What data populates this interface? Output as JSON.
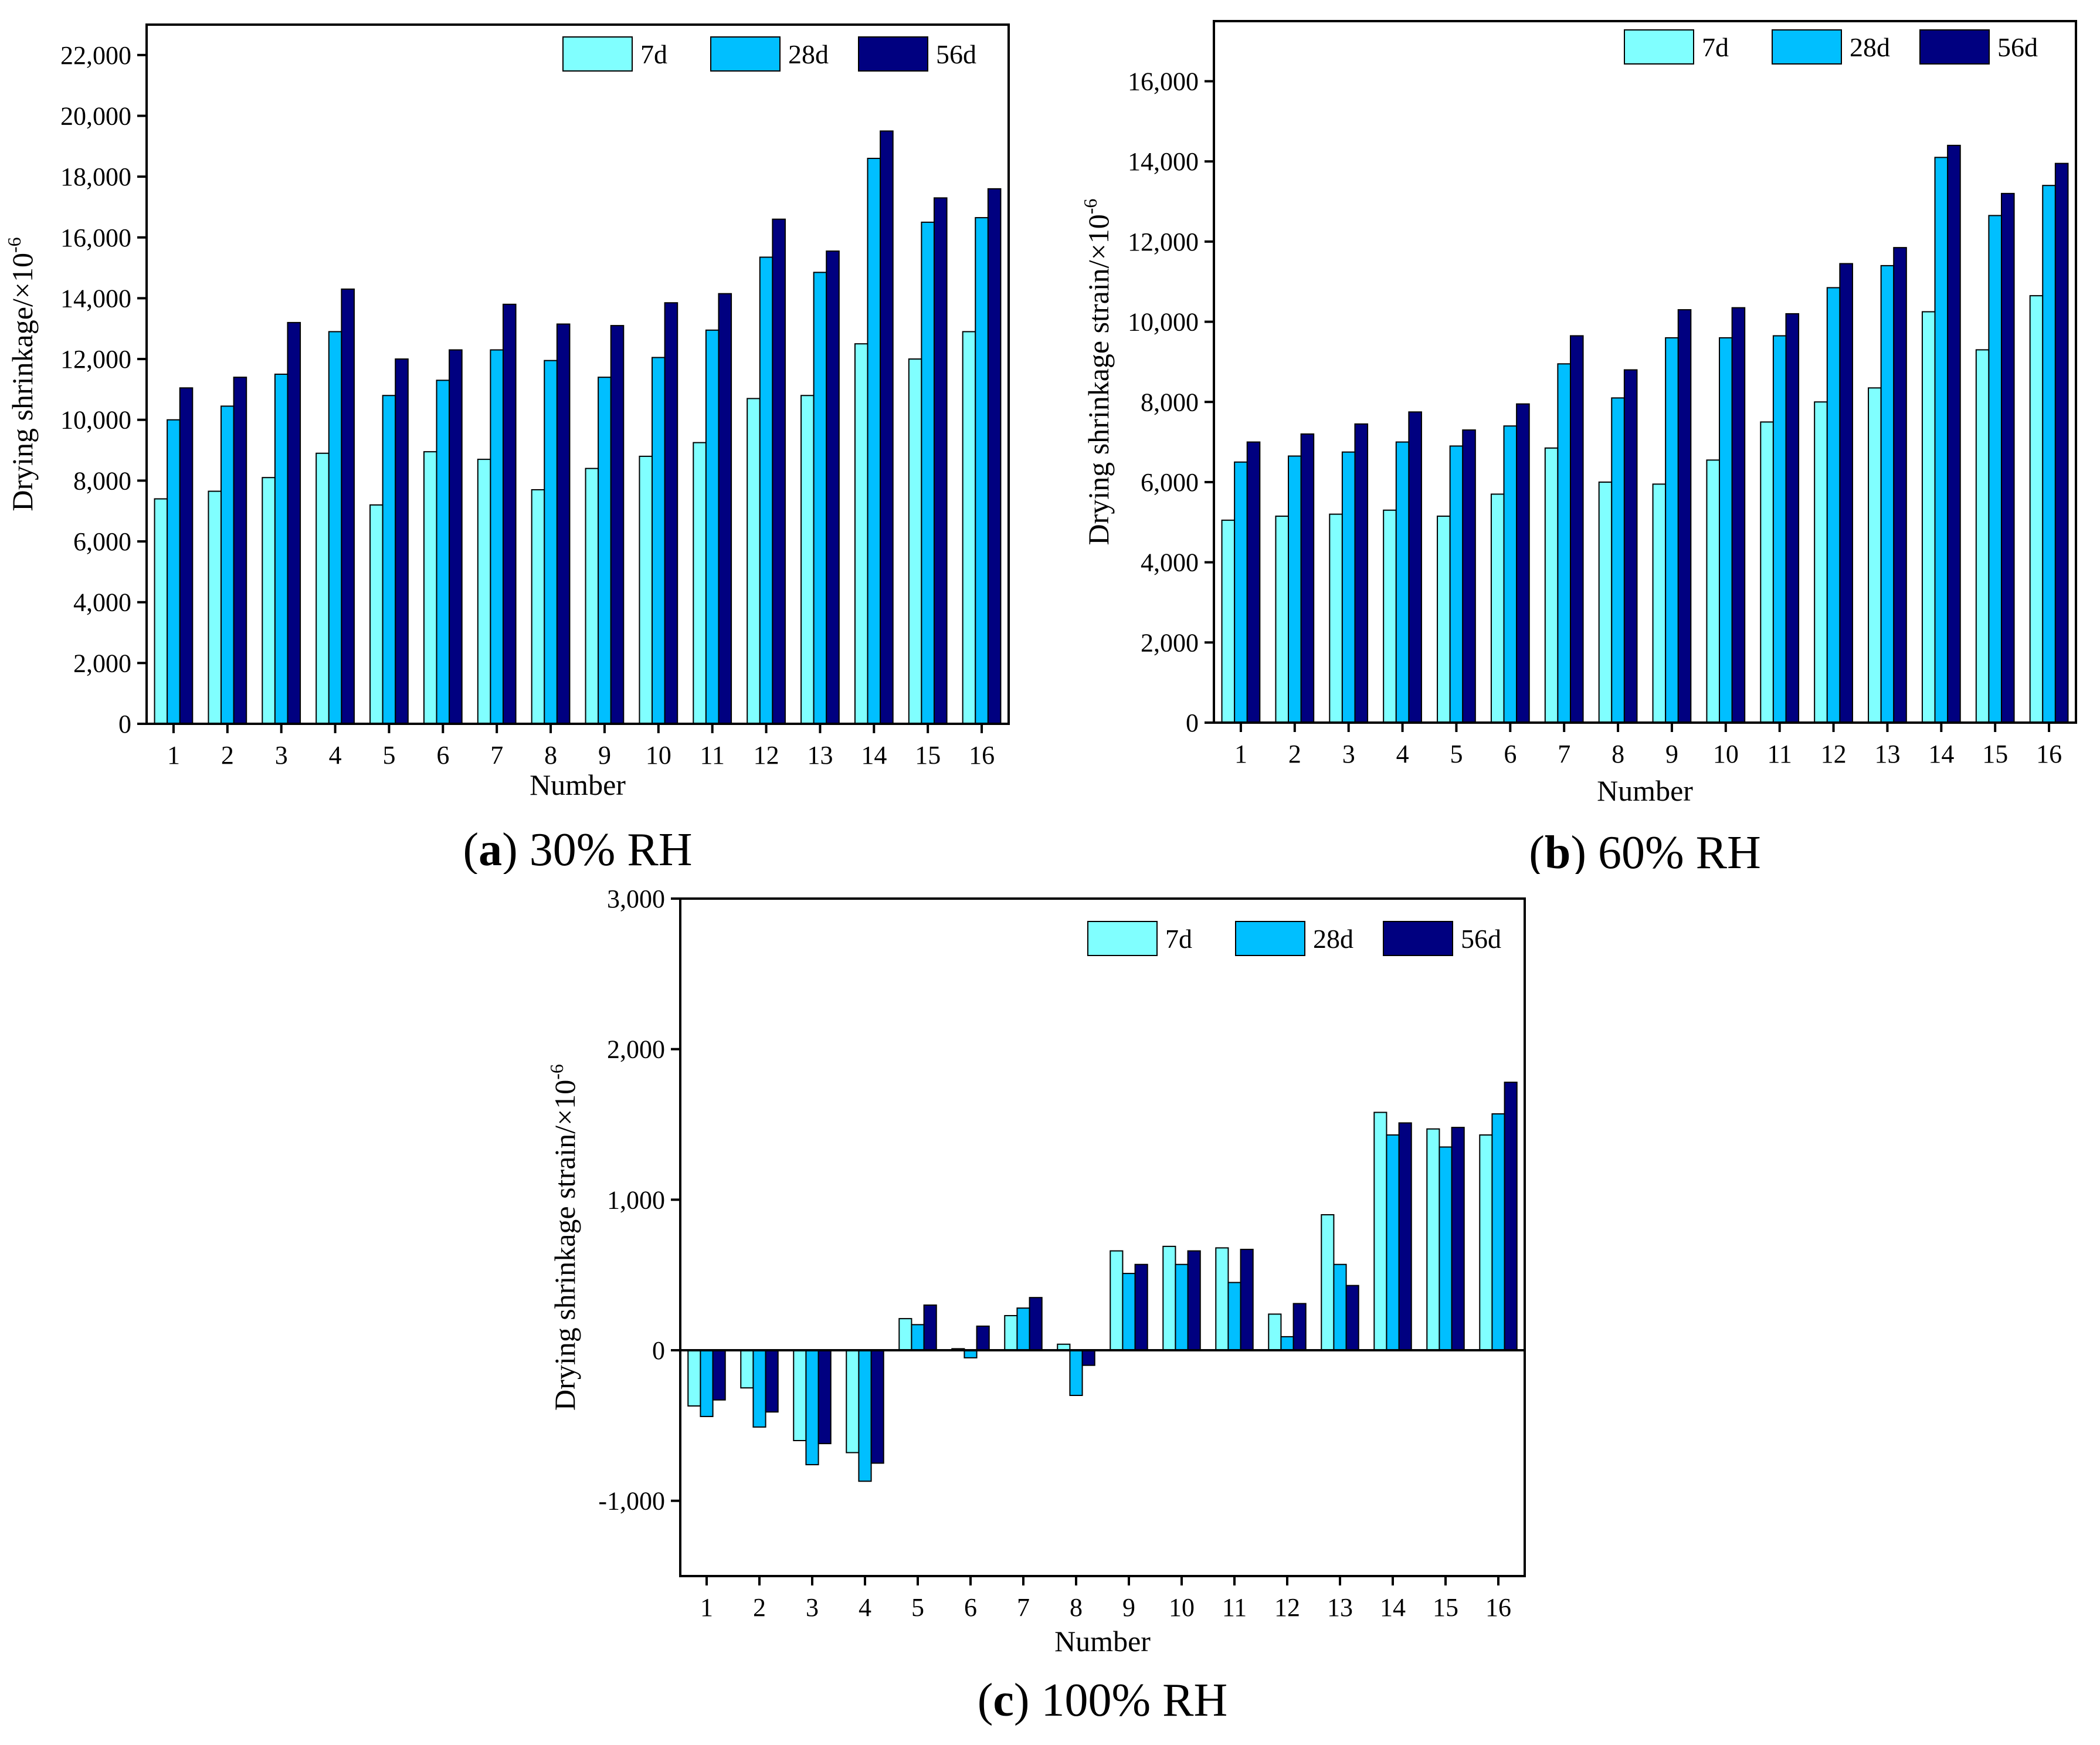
{
  "chart_data": [
    {
      "id": "a",
      "type": "bar",
      "caption_letter": "a",
      "caption_text": " 30% RH",
      "xlabel": "Number",
      "ylabel": "Drying shrinkage/×10",
      "ylabel_sup": "-6",
      "ylim": [
        0,
        23000
      ],
      "yticks": [
        0,
        2000,
        4000,
        6000,
        8000,
        10000,
        12000,
        14000,
        16000,
        18000,
        20000,
        22000
      ],
      "ytick_labels": [
        "0",
        "2,000",
        "4,000",
        "6,000",
        "8,000",
        "10,000",
        "12,000",
        "14,000",
        "16,000",
        "18,000",
        "20,000",
        "22,000"
      ],
      "categories": [
        "1",
        "2",
        "3",
        "4",
        "5",
        "6",
        "7",
        "8",
        "9",
        "10",
        "11",
        "12",
        "13",
        "14",
        "15",
        "16"
      ],
      "legend": [
        "7d",
        "28d",
        "56d"
      ],
      "legend_position": "top-right",
      "series": [
        {
          "name": "7d",
          "color": "#80FFFF",
          "values": [
            7400,
            7650,
            8100,
            8900,
            7200,
            8950,
            8700,
            7700,
            8400,
            8800,
            9250,
            10700,
            10800,
            12500,
            12000,
            12900
          ]
        },
        {
          "name": "28d",
          "color": "#00BFFF",
          "values": [
            10000,
            10450,
            11500,
            12900,
            10800,
            11300,
            12300,
            11950,
            11400,
            12050,
            12950,
            15350,
            14850,
            18600,
            16500,
            16650
          ]
        },
        {
          "name": "56d",
          "color": "#000080",
          "values": [
            11050,
            11400,
            13200,
            14300,
            12000,
            12300,
            13800,
            13150,
            13100,
            13850,
            14150,
            16600,
            15550,
            19500,
            17300,
            17600
          ]
        }
      ]
    },
    {
      "id": "b",
      "type": "bar",
      "caption_letter": "b",
      "caption_text": " 60% RH",
      "xlabel": "Number",
      "ylabel": "Drying shrinkage strain/×10",
      "ylabel_sup": "-6",
      "ylim": [
        0,
        17500
      ],
      "yticks": [
        0,
        2000,
        4000,
        6000,
        8000,
        10000,
        12000,
        14000,
        16000
      ],
      "ytick_labels": [
        "0",
        "2,000",
        "4,000",
        "6,000",
        "8,000",
        "10,000",
        "12,000",
        "14,000",
        "16,000"
      ],
      "categories": [
        "1",
        "2",
        "3",
        "4",
        "5",
        "6",
        "7",
        "8",
        "9",
        "10",
        "11",
        "12",
        "13",
        "14",
        "15",
        "16"
      ],
      "legend": [
        "7d",
        "28d",
        "56d"
      ],
      "legend_position": "top-right",
      "series": [
        {
          "name": "7d",
          "color": "#80FFFF",
          "values": [
            5050,
            5150,
            5200,
            5300,
            5150,
            5700,
            6850,
            6000,
            5950,
            6550,
            7500,
            8000,
            8350,
            10250,
            9300,
            10650
          ]
        },
        {
          "name": "28d",
          "color": "#00BFFF",
          "values": [
            6500,
            6650,
            6750,
            7000,
            6900,
            7400,
            8950,
            8100,
            9600,
            9600,
            9650,
            10850,
            11400,
            14100,
            12650,
            13400
          ]
        },
        {
          "name": "56d",
          "color": "#000080",
          "values": [
            7000,
            7200,
            7450,
            7750,
            7300,
            7950,
            9650,
            8800,
            10300,
            10350,
            10200,
            11450,
            11850,
            14400,
            13200,
            13950
          ]
        }
      ]
    },
    {
      "id": "c",
      "type": "bar",
      "caption_letter": "c",
      "caption_text": " 100% RH",
      "xlabel": "Number",
      "ylabel": "Drying shrinkage strain/×10",
      "ylabel_sup": "-6",
      "ylim": [
        -1500,
        3000
      ],
      "yticks": [
        -1000,
        0,
        1000,
        2000,
        3000
      ],
      "ytick_labels": [
        "-1,000",
        "0",
        "1,000",
        "2,000",
        "3,000"
      ],
      "categories": [
        "1",
        "2",
        "3",
        "4",
        "5",
        "6",
        "7",
        "8",
        "9",
        "10",
        "11",
        "12",
        "13",
        "14",
        "15",
        "16"
      ],
      "legend": [
        "7d",
        "28d",
        "56d"
      ],
      "legend_position": "top-right",
      "series": [
        {
          "name": "7d",
          "color": "#80FFFF",
          "values": [
            -370,
            -250,
            -600,
            -680,
            210,
            10,
            230,
            40,
            660,
            690,
            680,
            240,
            900,
            1580,
            1470,
            1430
          ]
        },
        {
          "name": "28d",
          "color": "#00BFFF",
          "values": [
            -440,
            -510,
            -760,
            -870,
            170,
            -50,
            280,
            -300,
            510,
            570,
            450,
            90,
            570,
            1430,
            1350,
            1570
          ]
        },
        {
          "name": "56d",
          "color": "#000080",
          "values": [
            -330,
            -410,
            -620,
            -750,
            300,
            160,
            350,
            -100,
            570,
            660,
            670,
            310,
            430,
            1510,
            1480,
            1780
          ]
        }
      ]
    }
  ]
}
